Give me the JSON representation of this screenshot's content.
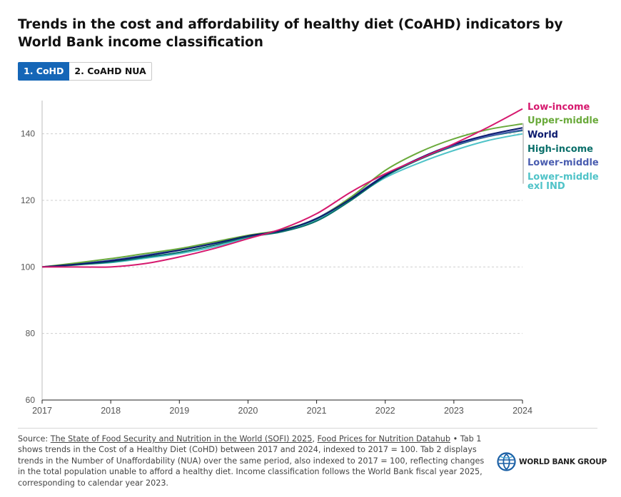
{
  "header": {
    "title": "Trends in the cost and affordability of healthy diet (CoAHD) indicators by World Bank income classification"
  },
  "tabs": [
    {
      "label": "1. CoHD",
      "active": true
    },
    {
      "label": "2. CoAHD NUA",
      "active": false
    }
  ],
  "chart_data": {
    "type": "line",
    "title": "",
    "xlabel": "",
    "ylabel": "",
    "x": [
      2017,
      2017.5,
      2018,
      2018.5,
      2019,
      2019.5,
      2020,
      2020.5,
      2021,
      2021.5,
      2022,
      2022.5,
      2023,
      2023.5,
      2024
    ],
    "xticks": [
      "2017",
      "2018",
      "2019",
      "2020",
      "2021",
      "2022",
      "2023",
      "2024"
    ],
    "yticks": [
      "60",
      "80",
      "100",
      "120",
      "140"
    ],
    "ylim": [
      60,
      150
    ],
    "xlim": [
      2017,
      2024
    ],
    "grid": true,
    "legend_placement": "right (direct labels)",
    "series": [
      {
        "name": "Low-income",
        "color": "#d6196e",
        "values": [
          100,
          100,
          100,
          101,
          103,
          105.5,
          108.5,
          111.5,
          116,
          122.5,
          128,
          132.5,
          137,
          142,
          147.5
        ]
      },
      {
        "name": "Upper-middle",
        "color": "#6aaa3b",
        "values": [
          100,
          101.2,
          102.5,
          104,
          105.5,
          107.5,
          109.5,
          111.2,
          114.5,
          121,
          129,
          134.5,
          138.5,
          141.3,
          143
        ]
      },
      {
        "name": "World",
        "color": "#0b1b6e",
        "values": [
          100,
          100.8,
          101.8,
          103.3,
          105,
          107,
          109.3,
          111,
          114.5,
          120.5,
          127.5,
          132.7,
          136.8,
          139.7,
          141.8
        ]
      },
      {
        "name": "High-income",
        "color": "#0a6f6a",
        "values": [
          100,
          100.6,
          101.5,
          102.9,
          104.4,
          106.5,
          109,
          110.6,
          113.8,
          120,
          127.2,
          132.3,
          136.3,
          139.2,
          141
        ]
      },
      {
        "name": "Lower-middle",
        "color": "#4a5db0",
        "values": [
          100,
          100.9,
          102,
          103.5,
          105.2,
          107.2,
          109.4,
          111,
          114.6,
          120.8,
          127.6,
          132.6,
          136.5,
          139.3,
          141.2
        ]
      },
      {
        "name": "Lower-middle exl IND",
        "color": "#4fc3c8",
        "values": [
          100,
          100.7,
          101.3,
          102.6,
          104,
          106,
          108.8,
          111,
          114.2,
          120.3,
          126.8,
          131.3,
          135,
          138,
          140
        ]
      }
    ],
    "label_lines": [
      [
        "Low-income"
      ],
      [
        "Upper-middle"
      ],
      [
        "World"
      ],
      [
        "High-income"
      ],
      [
        "Lower-middle"
      ],
      [
        "Lower-middle",
        "exl IND"
      ]
    ]
  },
  "footnote": {
    "source_prefix": "Source: ",
    "source_link1": "The State of Food Security and Nutrition in the World (SOFI) 2025",
    "separator": ", ",
    "source_link2": "Food Prices for Nutrition Datahub",
    "bullet": " •",
    "body": "Tab 1 shows trends in the Cost of a Healthy Diet (CoHD) between 2017 and 2024, indexed to 2017 = 100. Tab 2 displays trends in the Number of Unaffordability (NUA) over the same period, also indexed to 2017 = 100, reflecting changes in the total population unable to afford a healthy diet. Income classification follows the World Bank fiscal year 2025, corresponding to calendar year 2023."
  },
  "brand": {
    "name": "WORLD BANK GROUP",
    "icon": "globe-icon",
    "color": "#1a5fa5"
  }
}
